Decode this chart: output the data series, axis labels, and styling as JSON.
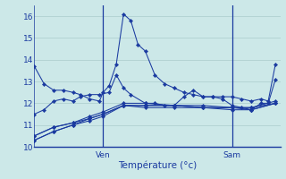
{
  "bg_color": "#cce8e8",
  "grid_color": "#aacccc",
  "line_color": "#1a3aa0",
  "ylim": [
    10,
    16.5
  ],
  "yticks": [
    10,
    11,
    12,
    13,
    14,
    15,
    16
  ],
  "xlabel": "Température (°c)",
  "vline_positions": [
    0.285,
    0.82
  ],
  "vline_labels": [
    "Ven",
    "Sam"
  ],
  "series": [
    {
      "x": [
        0.0,
        0.04,
        0.08,
        0.12,
        0.16,
        0.19,
        0.23,
        0.27,
        0.285,
        0.31,
        0.34,
        0.37,
        0.4,
        0.43,
        0.46,
        0.5,
        0.54,
        0.58,
        0.62,
        0.66,
        0.7,
        0.74,
        0.78,
        0.82,
        0.86,
        0.9,
        0.94,
        0.97,
        1.0
      ],
      "y": [
        13.7,
        12.9,
        12.6,
        12.6,
        12.5,
        12.4,
        12.2,
        12.1,
        12.5,
        12.8,
        13.8,
        16.1,
        15.8,
        14.7,
        14.4,
        13.3,
        12.9,
        12.7,
        12.5,
        12.4,
        12.3,
        12.3,
        12.3,
        12.3,
        12.2,
        12.1,
        12.2,
        12.1,
        13.8
      ]
    },
    {
      "x": [
        0.0,
        0.04,
        0.08,
        0.12,
        0.16,
        0.19,
        0.23,
        0.27,
        0.31,
        0.34,
        0.37,
        0.4,
        0.46,
        0.5,
        0.54,
        0.58,
        0.62,
        0.66,
        0.7,
        0.74,
        0.78,
        0.82,
        0.86,
        0.9,
        0.94,
        0.97,
        1.0
      ],
      "y": [
        11.5,
        11.7,
        12.1,
        12.2,
        12.1,
        12.3,
        12.4,
        12.4,
        12.5,
        13.3,
        12.7,
        12.4,
        12.0,
        12.0,
        11.9,
        11.9,
        12.3,
        12.6,
        12.3,
        12.3,
        12.2,
        11.9,
        11.8,
        11.7,
        12.0,
        12.0,
        13.1
      ]
    },
    {
      "x": [
        0.0,
        0.08,
        0.16,
        0.23,
        0.285,
        0.37,
        0.46,
        0.58,
        0.7,
        0.82,
        0.9,
        1.0
      ],
      "y": [
        10.5,
        10.9,
        11.1,
        11.4,
        11.6,
        12.0,
        12.0,
        11.9,
        11.9,
        11.8,
        11.8,
        12.0
      ]
    },
    {
      "x": [
        0.0,
        0.08,
        0.16,
        0.23,
        0.285,
        0.37,
        0.46,
        0.58,
        0.7,
        0.82,
        0.9,
        1.0
      ],
      "y": [
        10.3,
        10.7,
        11.0,
        11.3,
        11.5,
        11.9,
        11.9,
        11.9,
        11.8,
        11.8,
        11.7,
        12.0
      ]
    },
    {
      "x": [
        0.0,
        0.08,
        0.16,
        0.23,
        0.285,
        0.37,
        0.46,
        0.58,
        0.7,
        0.82,
        0.9,
        1.0
      ],
      "y": [
        10.3,
        10.7,
        11.0,
        11.2,
        11.4,
        11.9,
        11.8,
        11.8,
        11.8,
        11.7,
        11.7,
        12.0
      ]
    },
    {
      "x": [
        0.0,
        0.08,
        0.16,
        0.23,
        0.285,
        0.37,
        0.46,
        0.58,
        0.7,
        0.82,
        0.9,
        1.0
      ],
      "y": [
        10.5,
        10.9,
        11.1,
        11.3,
        11.5,
        11.9,
        11.9,
        11.9,
        11.8,
        11.8,
        11.8,
        12.1
      ]
    }
  ]
}
